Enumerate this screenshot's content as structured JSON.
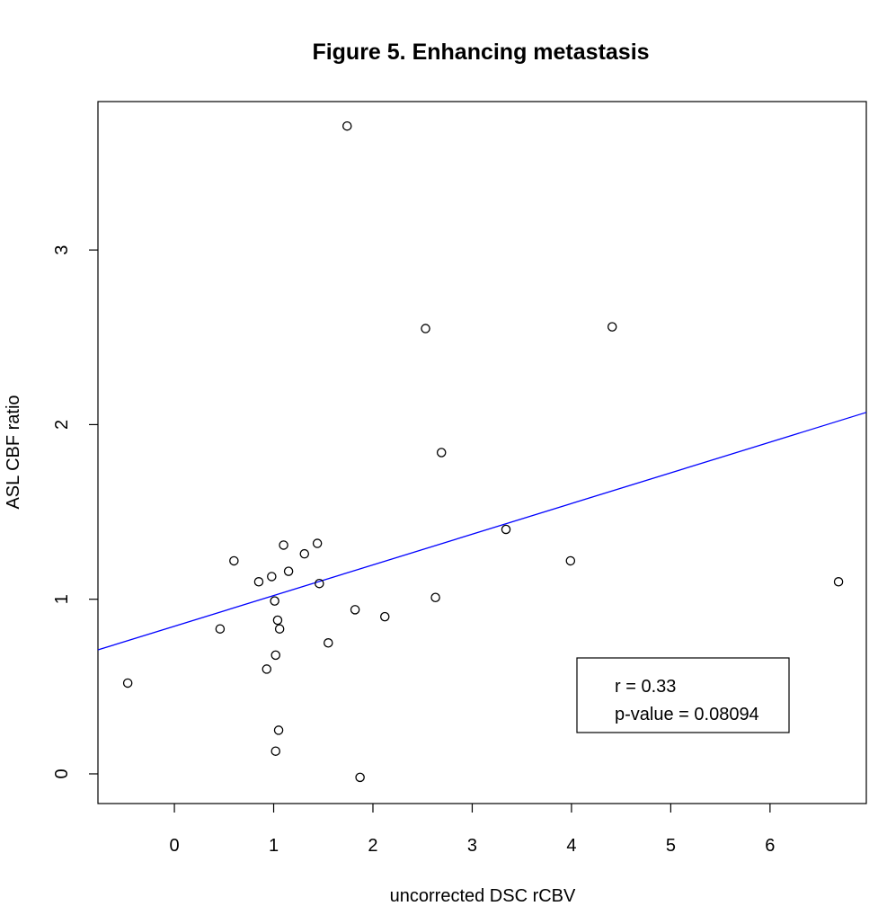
{
  "chart_data": {
    "type": "scatter",
    "title": "Figure 5. Enhancing metastasis",
    "xlabel": "uncorrected DSC rCBV",
    "ylabel": "ASL CBF ratio",
    "xlim": [
      -0.77,
      6.97
    ],
    "ylim": [
      -0.17,
      3.85
    ],
    "xticks": [
      0,
      1,
      2,
      3,
      4,
      5,
      6
    ],
    "yticks": [
      0,
      1,
      2,
      3
    ],
    "grid": false,
    "points": [
      {
        "x": -0.47,
        "y": 0.52
      },
      {
        "x": 0.46,
        "y": 0.83
      },
      {
        "x": 0.6,
        "y": 1.22
      },
      {
        "x": 0.85,
        "y": 1.1
      },
      {
        "x": 0.93,
        "y": 0.6
      },
      {
        "x": 0.98,
        "y": 1.13
      },
      {
        "x": 1.01,
        "y": 0.99
      },
      {
        "x": 1.02,
        "y": 0.68
      },
      {
        "x": 1.02,
        "y": 0.13
      },
      {
        "x": 1.04,
        "y": 0.88
      },
      {
        "x": 1.05,
        "y": 0.25
      },
      {
        "x": 1.06,
        "y": 0.83
      },
      {
        "x": 1.1,
        "y": 1.31
      },
      {
        "x": 1.15,
        "y": 1.16
      },
      {
        "x": 1.31,
        "y": 1.26
      },
      {
        "x": 1.44,
        "y": 1.32
      },
      {
        "x": 1.46,
        "y": 1.09
      },
      {
        "x": 1.55,
        "y": 0.75
      },
      {
        "x": 1.74,
        "y": 3.71
      },
      {
        "x": 1.82,
        "y": 0.94
      },
      {
        "x": 1.87,
        "y": -0.02
      },
      {
        "x": 2.12,
        "y": 0.9
      },
      {
        "x": 2.53,
        "y": 2.55
      },
      {
        "x": 2.63,
        "y": 1.01
      },
      {
        "x": 2.69,
        "y": 1.84
      },
      {
        "x": 3.34,
        "y": 1.4
      },
      {
        "x": 3.99,
        "y": 1.22
      },
      {
        "x": 4.41,
        "y": 2.56
      },
      {
        "x": 6.69,
        "y": 1.1
      }
    ],
    "fit_line": {
      "color": "#0000ff",
      "x": [
        -0.77,
        6.97
      ],
      "y": [
        0.71,
        2.07
      ]
    },
    "legend": {
      "position": "bottom-right",
      "lines": [
        "r = 0.33",
        "p-value = 0.08094"
      ]
    }
  }
}
